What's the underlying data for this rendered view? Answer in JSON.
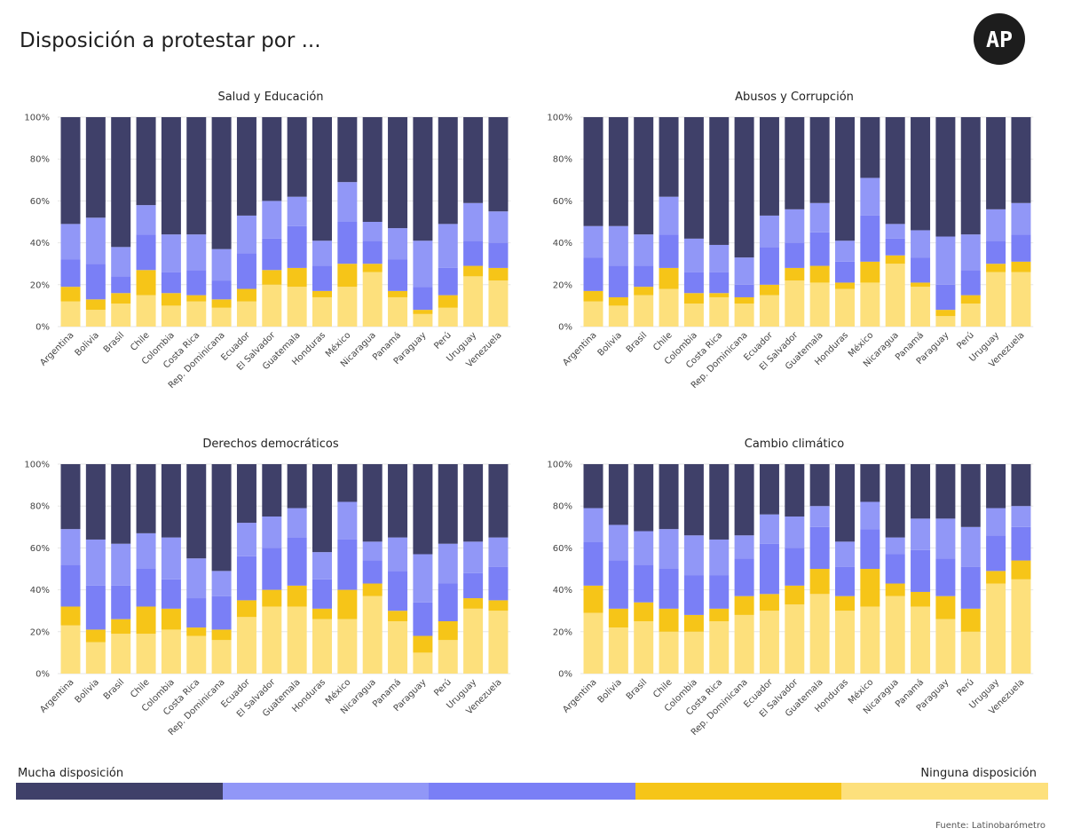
{
  "title": "Disposición a protestar por ...",
  "logo_text": "AP",
  "source": "Fuente: Latinobarómetro",
  "legend": {
    "left_label": "Mucha disposición",
    "right_label": "Ninguna disposición",
    "colors": [
      "#3f4069",
      "#9197f7",
      "#7a7ff6",
      "#f6c518",
      "#fde07c"
    ]
  },
  "colors": {
    "levels": [
      "#fde07c",
      "#f6c518",
      "#7a7ff6",
      "#9197f7",
      "#3f4069"
    ],
    "grid": "#e6e6e6"
  },
  "chart_data": [
    {
      "type": "bar",
      "stacked": true,
      "title": "Salud y Educación",
      "categories": [
        "Argentina",
        "Bolivia",
        "Brasil",
        "Chile",
        "Colombia",
        "Costa Rica",
        "Rep. Dominicana",
        "Ecuador",
        "El Salvador",
        "Guatemala",
        "Honduras",
        "México",
        "Nicaragua",
        "Panamá",
        "Paraguay",
        "Perú",
        "Uruguay",
        "Venezuela"
      ],
      "ylim": [
        0,
        100
      ],
      "yticks": [
        "0%",
        "20%",
        "40%",
        "60%",
        "80%",
        "100%"
      ],
      "series": [
        {
          "values": [
            12,
            8,
            11,
            15,
            10,
            12,
            9,
            12,
            20,
            19,
            14,
            19,
            26,
            14,
            6,
            9,
            24,
            22
          ]
        },
        {
          "values": [
            7,
            5,
            5,
            12,
            6,
            3,
            4,
            6,
            7,
            9,
            3,
            11,
            4,
            3,
            2,
            6,
            5,
            6
          ]
        },
        {
          "values": [
            13,
            17,
            8,
            17,
            10,
            12,
            9,
            17,
            15,
            20,
            12,
            20,
            11,
            15,
            11,
            13,
            12,
            12
          ]
        },
        {
          "values": [
            17,
            22,
            14,
            14,
            18,
            17,
            15,
            18,
            18,
            14,
            12,
            19,
            9,
            15,
            22,
            21,
            18,
            15
          ]
        },
        {
          "values": [
            51,
            48,
            62,
            42,
            56,
            56,
            63,
            47,
            40,
            38,
            59,
            31,
            50,
            53,
            59,
            51,
            41,
            45
          ]
        }
      ]
    },
    {
      "type": "bar",
      "stacked": true,
      "title": "Abusos y Corrupción",
      "categories": [
        "Argentina",
        "Bolivia",
        "Brasil",
        "Chile",
        "Colombia",
        "Costa Rica",
        "Rep. Dominicana",
        "Ecuador",
        "El Salvador",
        "Guatemala",
        "Honduras",
        "México",
        "Nicaragua",
        "Panamá",
        "Paraguay",
        "Perú",
        "Uruguay",
        "Venezuela"
      ],
      "ylim": [
        0,
        100
      ],
      "yticks": [
        "0%",
        "20%",
        "40%",
        "60%",
        "80%",
        "100%"
      ],
      "series": [
        {
          "values": [
            12,
            10,
            15,
            18,
            11,
            14,
            11,
            15,
            22,
            21,
            18,
            21,
            30,
            19,
            5,
            11,
            26,
            26
          ]
        },
        {
          "values": [
            5,
            4,
            4,
            10,
            5,
            2,
            3,
            5,
            6,
            8,
            3,
            10,
            4,
            2,
            3,
            4,
            4,
            5
          ]
        },
        {
          "values": [
            16,
            15,
            10,
            16,
            10,
            10,
            6,
            18,
            12,
            16,
            10,
            22,
            8,
            12,
            12,
            12,
            11,
            13
          ]
        },
        {
          "values": [
            15,
            19,
            15,
            18,
            16,
            13,
            13,
            15,
            16,
            14,
            10,
            18,
            7,
            13,
            23,
            17,
            15,
            15
          ]
        },
        {
          "values": [
            52,
            52,
            56,
            38,
            58,
            61,
            67,
            47,
            44,
            41,
            59,
            29,
            51,
            54,
            57,
            56,
            44,
            41
          ]
        }
      ]
    },
    {
      "type": "bar",
      "stacked": true,
      "title": "Derechos democráticos",
      "categories": [
        "Argentina",
        "Bolivia",
        "Brasil",
        "Chile",
        "Colombia",
        "Costa Rica",
        "Rep. Dominicana",
        "Ecuador",
        "El Salvador",
        "Guatemala",
        "Honduras",
        "México",
        "Nicaragua",
        "Panamá",
        "Paraguay",
        "Perú",
        "Uruguay",
        "Venezuela"
      ],
      "ylim": [
        0,
        100
      ],
      "yticks": [
        "0%",
        "20%",
        "40%",
        "60%",
        "80%",
        "100%"
      ],
      "series": [
        {
          "values": [
            23,
            15,
            19,
            19,
            21,
            18,
            16,
            27,
            32,
            32,
            26,
            26,
            37,
            25,
            10,
            16,
            31,
            30
          ]
        },
        {
          "values": [
            9,
            6,
            7,
            13,
            10,
            4,
            5,
            8,
            8,
            10,
            5,
            14,
            6,
            5,
            8,
            9,
            5,
            5
          ]
        },
        {
          "values": [
            20,
            21,
            16,
            18,
            14,
            14,
            16,
            21,
            20,
            23,
            14,
            24,
            11,
            19,
            16,
            18,
            12,
            16
          ]
        },
        {
          "values": [
            17,
            22,
            20,
            17,
            20,
            19,
            12,
            16,
            15,
            14,
            13,
            18,
            9,
            16,
            23,
            19,
            15,
            14
          ]
        },
        {
          "values": [
            31,
            36,
            38,
            33,
            35,
            45,
            51,
            28,
            25,
            21,
            42,
            18,
            37,
            35,
            43,
            38,
            37,
            35
          ]
        }
      ]
    },
    {
      "type": "bar",
      "stacked": true,
      "title": "Cambio climático",
      "categories": [
        "Argentina",
        "Bolivia",
        "Brasil",
        "Chile",
        "Colombia",
        "Costa Rica",
        "Rep. Dominicana",
        "Ecuador",
        "El Salvador",
        "Guatemala",
        "Honduras",
        "México",
        "Nicaragua",
        "Panamá",
        "Paraguay",
        "Perú",
        "Uruguay",
        "Venezuela"
      ],
      "ylim": [
        0,
        100
      ],
      "yticks": [
        "0%",
        "20%",
        "40%",
        "60%",
        "80%",
        "100%"
      ],
      "series": [
        {
          "values": [
            29,
            22,
            25,
            20,
            20,
            25,
            28,
            30,
            33,
            38,
            30,
            32,
            37,
            32,
            26,
            20,
            43,
            45
          ]
        },
        {
          "values": [
            13,
            9,
            9,
            11,
            8,
            6,
            9,
            8,
            9,
            12,
            7,
            18,
            6,
            7,
            11,
            11,
            6,
            9
          ]
        },
        {
          "values": [
            21,
            23,
            18,
            19,
            19,
            16,
            18,
            24,
            18,
            20,
            14,
            19,
            14,
            20,
            18,
            20,
            17,
            16
          ]
        },
        {
          "values": [
            16,
            17,
            16,
            19,
            19,
            17,
            11,
            14,
            15,
            10,
            12,
            13,
            8,
            15,
            19,
            19,
            13,
            10
          ]
        },
        {
          "values": [
            21,
            29,
            32,
            31,
            34,
            36,
            34,
            24,
            25,
            20,
            37,
            18,
            35,
            26,
            26,
            30,
            21,
            20
          ]
        }
      ]
    }
  ]
}
